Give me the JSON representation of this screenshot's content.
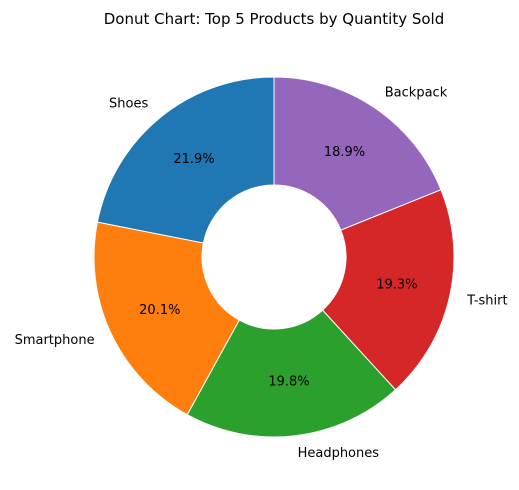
{
  "chart_data": {
    "type": "pie",
    "variant": "donut",
    "title": "Donut Chart: Top 5 Products by Quantity Sold",
    "categories": [
      "Shoes",
      "Smartphone",
      "Headphones",
      "T-shirt",
      "Backpack"
    ],
    "values": [
      21.9,
      20.1,
      19.8,
      19.3,
      18.9
    ],
    "value_labels": [
      "21.9%",
      "20.1%",
      "19.8%",
      "19.3%",
      "18.9%"
    ],
    "colors": [
      "#1f77b4",
      "#ff7f0e",
      "#2ca02c",
      "#d62728",
      "#9467bd"
    ],
    "start_angle_deg": 90,
    "direction": "counterclockwise",
    "hole_fraction": 0.4,
    "legend": "none"
  }
}
